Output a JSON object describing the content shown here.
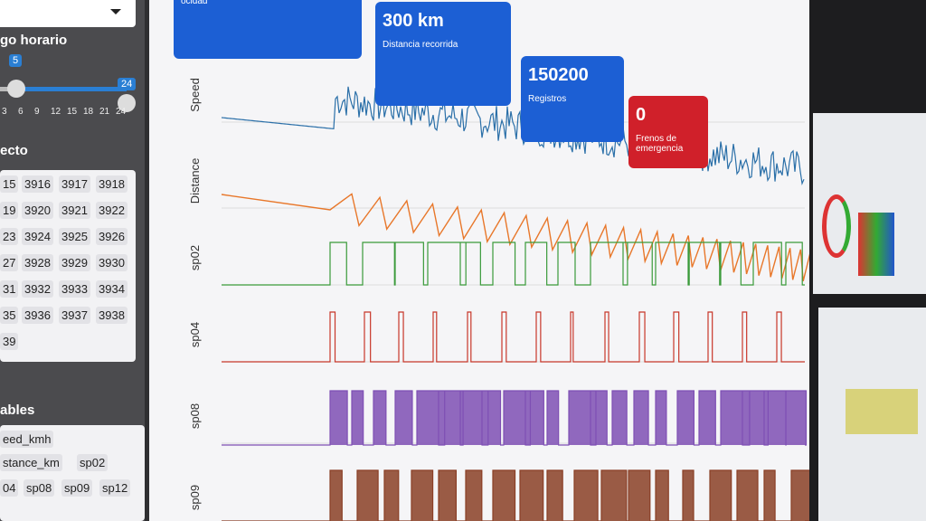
{
  "sidebar": {
    "time_range": {
      "title": "go horario",
      "min_handle": 5,
      "max_handle": 24,
      "ticks": [
        3,
        6,
        9,
        12,
        15,
        18,
        21,
        24
      ]
    },
    "project": {
      "title": "ecto",
      "ids": [
        [
          15,
          3916,
          3917,
          3918
        ],
        [
          19,
          3920,
          3921,
          3922
        ],
        [
          23,
          3924,
          3925,
          3926
        ],
        [
          27,
          3928,
          3929,
          3930
        ],
        [
          31,
          3932,
          3933,
          3934
        ],
        [
          35,
          3936,
          3937,
          3938
        ],
        [
          39
        ]
      ]
    },
    "variables": {
      "title": "ables",
      "chips": [
        "eed_kmh",
        "stance_km",
        "sp02",
        "04",
        "sp08",
        "sp09",
        "sp12"
      ]
    }
  },
  "cards": [
    {
      "label": "ocidad"
    },
    {
      "value": "300 km",
      "label": "Distancia recorrida"
    },
    {
      "value": 150200,
      "label": "Registros"
    },
    {
      "value": 0,
      "label": "Frenos de emergencia"
    }
  ],
  "plots": {
    "labels": [
      "Speed",
      "Distance",
      "sp02",
      "sp04",
      "sp08",
      "sp09"
    ]
  }
}
